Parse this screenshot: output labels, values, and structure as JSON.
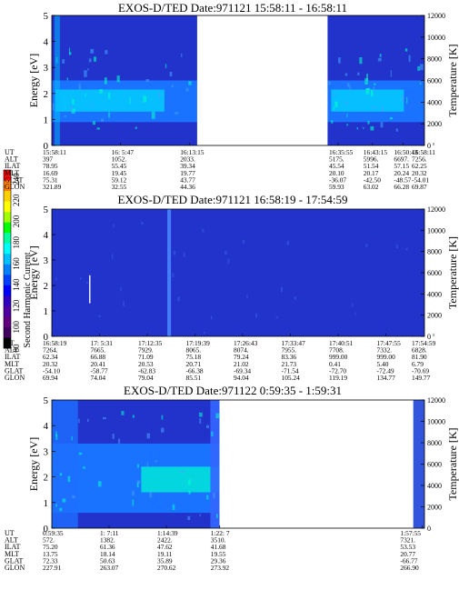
{
  "colorbar": {
    "label": "Second Harmonic Current",
    "ticks": [
      "240",
      "220",
      "200",
      "180",
      "160",
      "140",
      "120",
      "100",
      "80"
    ],
    "colors": [
      "#ff0000",
      "#ff8000",
      "#ffd000",
      "#ffff00",
      "#a0ff00",
      "#00ff00",
      "#00ffa0",
      "#00ffff",
      "#00c0ff",
      "#0080ff",
      "#0040ff",
      "#0000ff",
      "#3000c0",
      "#5000a0",
      "#600080",
      "#400060",
      "#000000"
    ]
  },
  "row_labels": [
    "UT",
    "ALT",
    "ILAT",
    "MLT",
    "GLAT",
    "GLON"
  ],
  "chart_data": [
    {
      "type": "heatmap",
      "title": "EXOS-D/TED  Date:971121  15:58:11 - 16:58:11",
      "ylabel": "Energy [eV]",
      "y2label": "Temperature [K]",
      "ylim": [
        0,
        5
      ],
      "y2lim": [
        0,
        12000
      ],
      "yticks": [
        "0",
        "1",
        "2",
        "3",
        "4",
        "5"
      ],
      "y2ticks": [
        "0",
        "2000",
        "4000",
        "6000",
        "8000",
        "10000",
        "12000"
      ],
      "background_color": "#2233cc",
      "data_gaps": [
        [
          0.39,
          0.74
        ]
      ],
      "columns": [
        {
          "UT": "15:58:11",
          "ALT": "397",
          "ILAT": "78.95",
          "MLT": "16.69",
          "GLAT": "75.31",
          "GLON": "321.89"
        },
        {
          "UT": "16: 5:47",
          "ALT": "1052.",
          "ILAT": "55.45",
          "MLT": "19.45",
          "GLAT": "59.12",
          "GLON": "32.55"
        },
        {
          "UT": "16:13:15",
          "ALT": "2033.",
          "ILAT": "39.34",
          "MLT": "19.77",
          "GLAT": "43.77",
          "GLON": "44.36"
        },
        {
          "UT": "16:35:55",
          "ALT": "5175.",
          "ILAT": "45.54",
          "MLT": "20.10",
          "GLAT": "-36.07",
          "GLON": "59.93"
        },
        {
          "UT": "16:43:15",
          "ALT": "5996.",
          "ILAT": "51.54",
          "MLT": "20.17",
          "GLAT": "-42.50",
          "GLON": "63.02"
        },
        {
          "UT": "16:50:43",
          "ALT": "6697.",
          "ILAT": "57.15",
          "MLT": "20.24",
          "GLAT": "-48.57",
          "GLON": "66.28"
        },
        {
          "UT": "16:58:11",
          "ALT": "7256.",
          "ILAT": "62.25",
          "MLT": "20.32",
          "GLAT": "-54.01",
          "GLON": "69.87"
        }
      ]
    },
    {
      "type": "heatmap",
      "title": "EXOS-D/TED  Date:971121  16:58:19 - 17:54:59",
      "ylabel": "Energy [eV]",
      "y2label": "Temperature [K]",
      "ylim": [
        0,
        5
      ],
      "y2lim": [
        0,
        12000
      ],
      "yticks": [
        "0",
        "1",
        "2",
        "3",
        "4",
        "5"
      ],
      "y2ticks": [
        "0",
        "2000",
        "4000",
        "6000",
        "8000",
        "10000",
        "12000"
      ],
      "background_color": "#2233cc",
      "data_gaps": [],
      "columns": [
        {
          "UT": "16:58:19",
          "ALT": "7264.",
          "ILAT": "62.34",
          "MLT": "20.32",
          "GLAT": "-54.10",
          "GLON": "69.94"
        },
        {
          "UT": "17: 5:31",
          "ALT": "7665.",
          "ILAT": "66.88",
          "MLT": "20.41",
          "GLAT": "-58.77",
          "GLON": "74.04"
        },
        {
          "UT": "17:12:35",
          "ALT": "7929.",
          "ILAT": "71.09",
          "MLT": "20.53",
          "GLAT": "-62.83",
          "GLON": "79.04"
        },
        {
          "UT": "17:19:39",
          "ALT": "8065.",
          "ILAT": "75.18",
          "MLT": "20.71",
          "GLAT": "-66.38",
          "GLON": "85.51"
        },
        {
          "UT": "17:26:43",
          "ALT": "8074.",
          "ILAT": "79.24",
          "MLT": "21.02",
          "GLAT": "-69.34",
          "GLON": "94.04"
        },
        {
          "UT": "17:33:47",
          "ALT": "7955.",
          "ILAT": "83.36",
          "MLT": "21.73",
          "GLAT": "-71.54",
          "GLON": "105.24"
        },
        {
          "UT": "17:40:51",
          "ALT": "7708.",
          "ILAT": "999.00",
          "MLT": "0.41",
          "GLAT": "-72.70",
          "GLON": "119.19"
        },
        {
          "UT": "17:47:55",
          "ALT": "7332.",
          "ILAT": "999.00",
          "MLT": "5.40",
          "GLAT": "-72.49",
          "GLON": "134.77"
        },
        {
          "UT": "17:54:59",
          "ALT": "6828.",
          "ILAT": "81.90",
          "MLT": "6.79",
          "GLAT": "-70.69",
          "GLON": "149.77"
        }
      ]
    },
    {
      "type": "heatmap",
      "title": "EXOS-D/TED  Date:971122  0:59:35 - 1:59:31",
      "ylabel": "Energy [eV]",
      "y2label": "Temperature [K]",
      "ylim": [
        0,
        5
      ],
      "y2lim": [
        0,
        12000
      ],
      "yticks": [
        "0",
        "1",
        "2",
        "3",
        "4",
        "5"
      ],
      "y2ticks": [
        "0",
        "2000",
        "4000",
        "6000",
        "8000",
        "10000",
        "12000"
      ],
      "background_color": "#2233cc",
      "data_gaps": [
        [
          0.45,
          0.97
        ]
      ],
      "columns": [
        {
          "UT": "0:59:35",
          "ALT": "572.",
          "ILAT": "75.20",
          "MLT": "13.75",
          "GLAT": "72.33",
          "GLON": "227.91"
        },
        {
          "UT": "1: 7:11",
          "ALT": "1382.",
          "ILAT": "61.36",
          "MLT": "18.14",
          "GLAT": "50.63",
          "GLON": "263.07"
        },
        {
          "UT": "1:14:39",
          "ALT": "2422.",
          "ILAT": "47.62",
          "MLT": "19.11",
          "GLAT": "35.89",
          "GLON": "270.62"
        },
        {
          "UT": "1:22: 7",
          "ALT": "3510.",
          "ILAT": "41.68",
          "MLT": "19.55",
          "GLAT": "29.36",
          "GLON": "273.92"
        },
        {
          "UT": "1:57:55",
          "ALT": "7321.",
          "ILAT": "53.53",
          "MLT": "20.77",
          "GLAT": "-66.77",
          "GLON": "266.90"
        }
      ]
    }
  ]
}
